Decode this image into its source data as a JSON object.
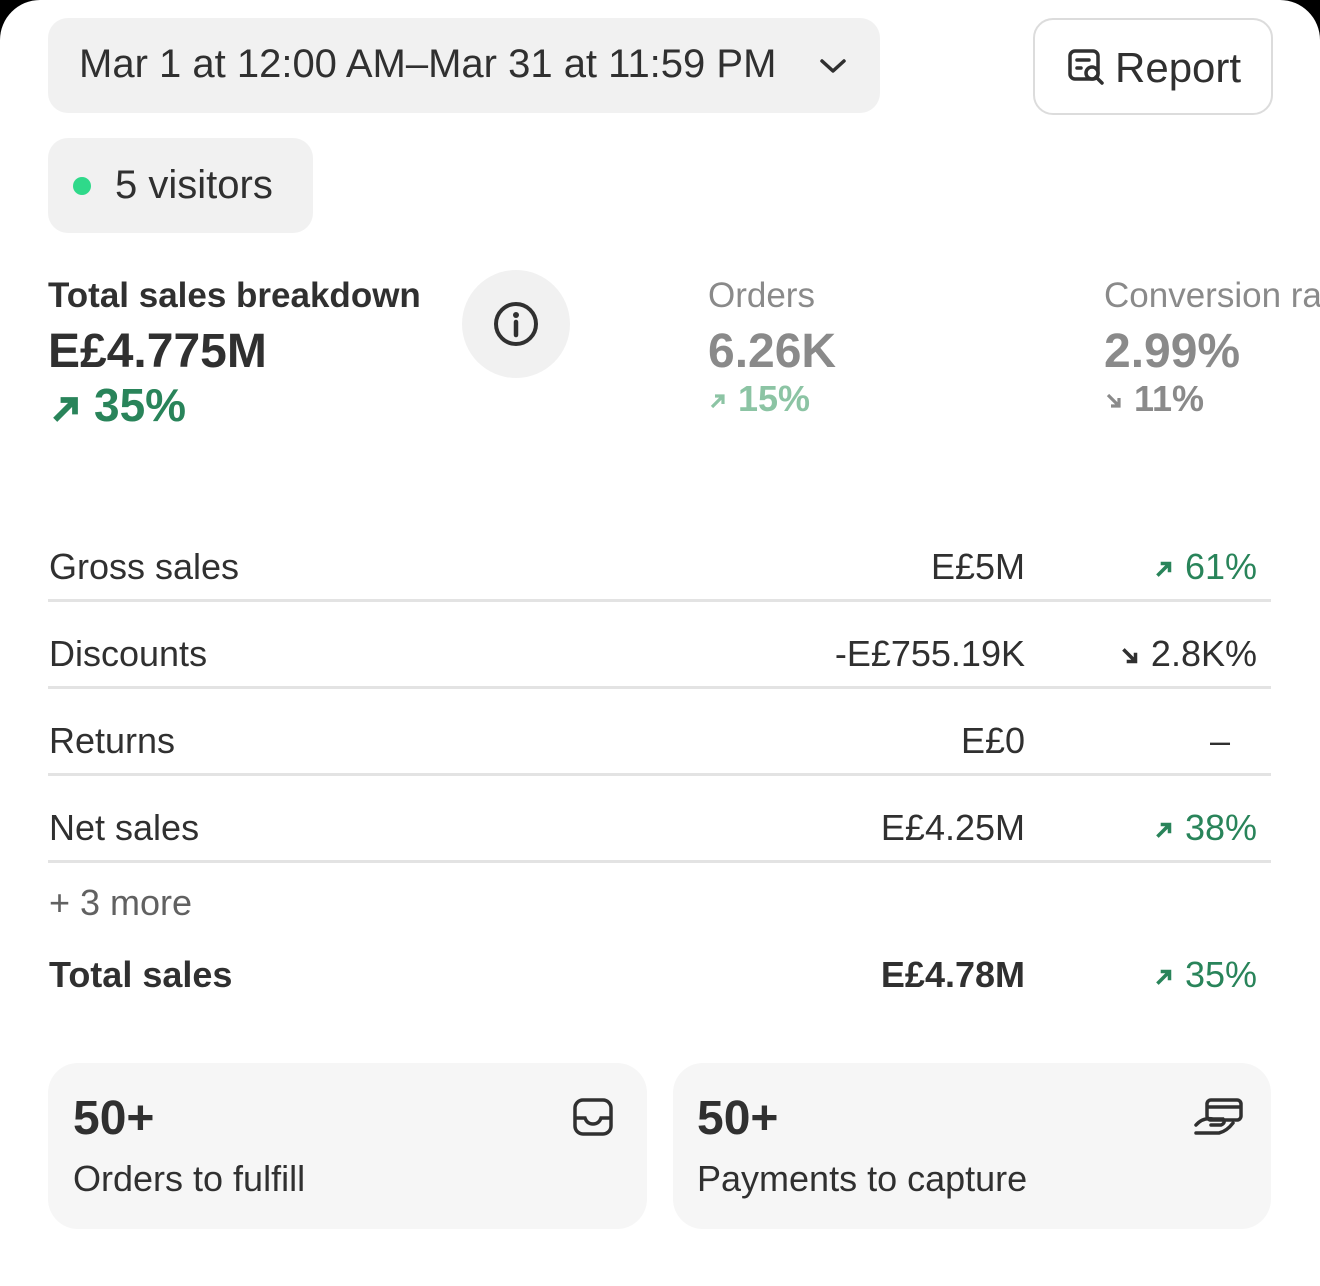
{
  "date_range": "Mar 1 at 12:00 AM–Mar 31 at 11:59 PM",
  "report_button": "Report",
  "visitors": "5 visitors",
  "metrics": [
    {
      "label": "Total sales breakdown",
      "value": "E£4.775M",
      "change": "35%",
      "direction": "up"
    },
    {
      "label": "Orders",
      "value": "6.26K",
      "change": "15%",
      "direction": "up"
    },
    {
      "label": "Conversion rate",
      "value": "2.99%",
      "change": "11%",
      "direction": "down"
    }
  ],
  "breakdown": [
    {
      "label": "Gross sales",
      "value": "E£5M",
      "change": "61%",
      "direction": "up"
    },
    {
      "label": "Discounts",
      "value": "-E£755.19K",
      "change": "2.8K%",
      "direction": "down"
    },
    {
      "label": "Returns",
      "value": "E£0",
      "change": "–"
    },
    {
      "label": "Net sales",
      "value": "E£4.25M",
      "change": "38%",
      "direction": "up"
    }
  ],
  "more_link": "+ 3 more",
  "total": {
    "label": "Total sales",
    "value": "E£4.78M",
    "change": "35%",
    "direction": "up"
  },
  "cards": [
    {
      "count": "50+",
      "label": "Orders to fulfill"
    },
    {
      "count": "50+",
      "label": "Payments to capture"
    }
  ]
}
